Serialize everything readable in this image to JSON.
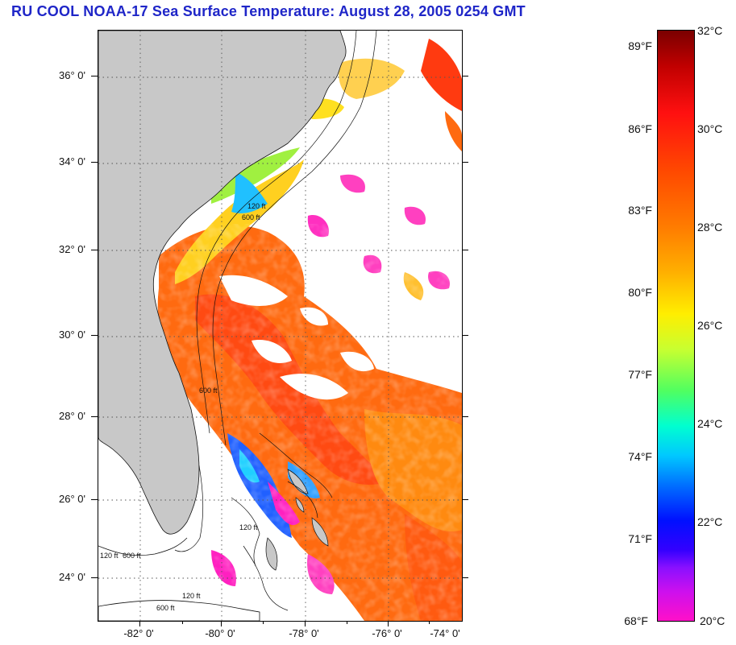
{
  "title": "RU COOL  NOAA-17  Sea Surface Temperature:  August 28, 2005 0254 GMT",
  "map": {
    "lat_labels": [
      "36° 0'",
      "34° 0'",
      "32° 0'",
      "30° 0'",
      "28° 0'",
      "26° 0'",
      "24° 0'"
    ],
    "lon_labels": [
      "-82° 0'",
      "-80° 0'",
      "-78° 0'",
      "-76° 0'",
      "-74° 0'"
    ],
    "contour_labels": [
      "600 ft",
      "120 ft",
      "600 ft",
      "120 ft",
      "600 ft",
      "120 ft",
      "600 ft",
      "120 ft"
    ],
    "colors": {
      "land": "#c8c8c8",
      "cloud": "#ffffff",
      "warm": "#ff6a10",
      "hot": "#ff3a10",
      "mid": "#ffb020",
      "cool": "#30c0ff",
      "cold": "#2040ff",
      "coldest": "#ff20c0"
    }
  },
  "colorbar": {
    "fahrenheit": [
      "89°F",
      "86°F",
      "83°F",
      "80°F",
      "77°F",
      "74°F",
      "71°F",
      "68°F"
    ],
    "celsius": [
      "32°C",
      "30°C",
      "28°C",
      "26°C",
      "24°C",
      "22°C",
      "20°C"
    ]
  }
}
